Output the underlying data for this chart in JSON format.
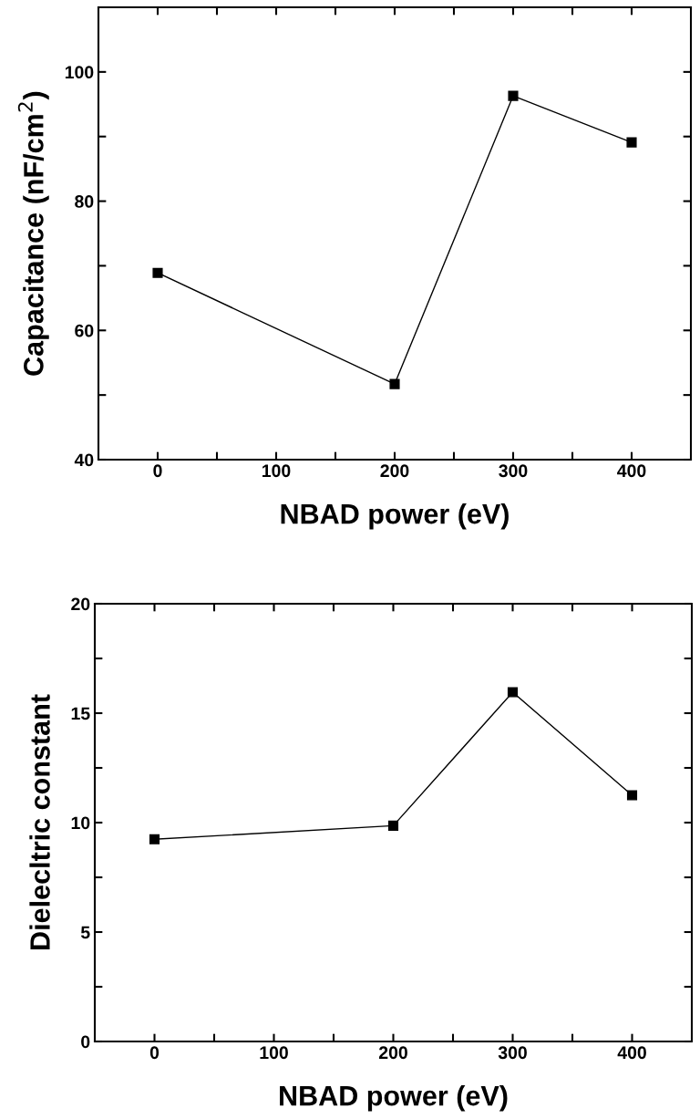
{
  "chart_data": [
    {
      "type": "line",
      "xlabel": "NBAD power (eV)",
      "ylabel": "Capacitance (nF/cm$^{2}$)",
      "x": [
        0,
        200,
        300,
        400
      ],
      "series": [
        {
          "color": "#000000",
          "values": [
            68.9,
            51.7,
            96.3,
            89.1
          ]
        }
      ],
      "marker": "square",
      "line_style": "solid",
      "grid": false,
      "legend": false,
      "xlim": [
        -50,
        450
      ],
      "xticks": [
        0,
        {
          "value": 50,
          "label": null
        },
        100,
        {
          "value": 150,
          "label": null
        },
        200,
        {
          "value": 250,
          "label": null
        },
        300,
        {
          "value": 350,
          "label": null
        },
        400
      ],
      "ylim": [
        40,
        110
      ],
      "yticks": [
        40,
        {
          "value": 50,
          "label": null
        },
        60,
        {
          "value": 70,
          "label": null
        },
        80,
        {
          "value": 90,
          "label": null
        },
        100
      ]
    },
    {
      "type": "line",
      "xlabel": "NBAD power (eV)",
      "ylabel": "Dielecltric constant",
      "x": [
        0,
        200,
        300,
        400
      ],
      "series": [
        {
          "color": "#000000",
          "values": [
            9.24,
            9.86,
            15.96,
            11.25
          ]
        }
      ],
      "marker": "square",
      "line_style": "solid",
      "grid": false,
      "legend": false,
      "xlim": [
        -50,
        450
      ],
      "xticks": [
        0,
        {
          "value": 50,
          "label": null
        },
        100,
        {
          "value": 150,
          "label": null
        },
        200,
        {
          "value": 250,
          "label": null
        },
        300,
        {
          "value": 350,
          "label": null
        },
        400
      ],
      "ylim": [
        0,
        20
      ],
      "yticks": [
        0,
        {
          "value": 2.5,
          "label": null
        },
        5,
        {
          "value": 7.5,
          "label": null
        },
        10,
        {
          "value": 12.5,
          "label": null
        },
        15,
        {
          "value": 17.5,
          "label": null
        },
        20
      ]
    }
  ]
}
